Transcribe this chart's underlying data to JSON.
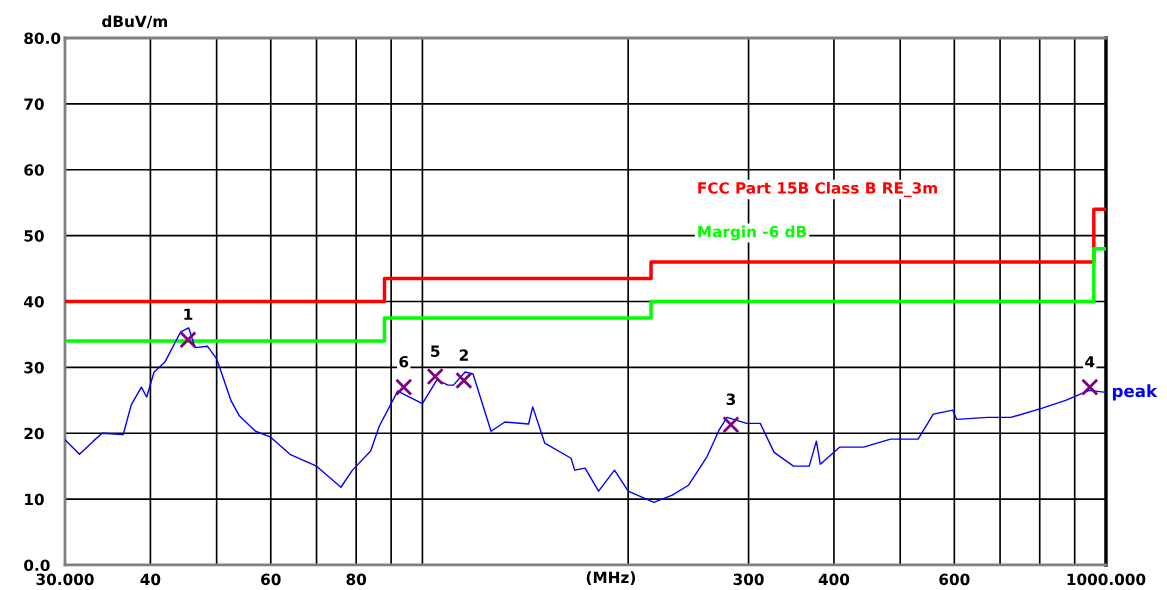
{
  "chart_data": {
    "type": "line",
    "xlabel": "(MHz)",
    "ylabel": "dBuV/m",
    "log": "x",
    "grid": true,
    "legend": false,
    "xlim": [
      30,
      1000
    ],
    "ylim": [
      0,
      80
    ],
    "xticks": [
      {
        "value": 30,
        "label": "30.000"
      },
      40,
      {
        "value": 50,
        "label": null
      },
      60,
      {
        "value": 70,
        "label": null
      },
      80,
      {
        "value": 90,
        "label": null
      },
      {
        "value": 100,
        "label": null
      },
      {
        "value": 200,
        "label": null
      },
      300,
      400,
      {
        "value": 500,
        "label": null
      },
      600,
      {
        "value": 700,
        "label": null
      },
      {
        "value": 800,
        "label": null
      },
      {
        "value": 900,
        "label": null
      },
      {
        "value": 1000,
        "label": "1000.000"
      }
    ],
    "yticks": [
      {
        "value": 0,
        "label": "0.0"
      },
      10,
      20,
      30,
      40,
      50,
      60,
      70,
      {
        "value": 80,
        "label": "80.0"
      }
    ],
    "series": [
      {
        "name": "FCC Part 15B Class B RE_3m",
        "type": "step",
        "color": "#ff0000",
        "x": [
          30,
          88,
          216,
          960,
          1000
        ],
        "values": [
          40,
          43.5,
          46,
          54,
          54
        ]
      },
      {
        "name": "Margin -6 dB",
        "type": "step",
        "color": "#00ff00",
        "x": [
          30,
          88,
          216,
          960,
          1000
        ],
        "values": [
          34,
          37.5,
          40,
          48,
          48
        ]
      },
      {
        "name": "peak",
        "color": "#0000ff",
        "marker": "none",
        "x": [
          30,
          31.5,
          33,
          34,
          36.5,
          37.5,
          38.8,
          39.5,
          40.5,
          42,
          44.3,
          45.5,
          46.5,
          48.5,
          50,
          52.5,
          54,
          57,
          60,
          64,
          70,
          76,
          79,
          84,
          86.5,
          92,
          100,
          105,
          109,
          111,
          115.5,
          118.6,
          126,
          132,
          143,
          145,
          149,
          151,
          165,
          167,
          173,
          181,
          191,
          200,
          218,
          232,
          245,
          261,
          272,
          279,
          298,
          312,
          327,
          349,
          368,
          377,
          382,
          408,
          442,
          484,
          531,
          559,
          597,
          605,
          671,
          726,
          807,
          873,
          945,
          1000
        ],
        "values": [
          19.0,
          16.8,
          18.8,
          20.0,
          19.8,
          24.3,
          27.0,
          25.5,
          29.3,
          30.8,
          35.4,
          36.0,
          33.0,
          33.2,
          31.3,
          24.9,
          22.6,
          20.3,
          19.4,
          16.8,
          15.0,
          11.8,
          14.4,
          17.3,
          21.1,
          26.4,
          24.5,
          28.1,
          27.3,
          27.3,
          29.3,
          29.0,
          20.3,
          21.7,
          21.4,
          24.0,
          20.3,
          18.5,
          16.2,
          14.4,
          14.7,
          11.2,
          14.4,
          11.2,
          9.5,
          10.6,
          12.1,
          16.5,
          20.6,
          22.4,
          21.5,
          21.5,
          17.1,
          15.0,
          15.0,
          18.8,
          15.3,
          17.9,
          17.9,
          19.1,
          19.1,
          22.9,
          23.5,
          22.1,
          22.4,
          22.4,
          23.8,
          25.0,
          26.5,
          26.2
        ]
      },
      {
        "type": "scatter",
        "color": "#800080",
        "marker": "cross",
        "x": [
          45.4,
          115,
          282.7,
          947,
          104.4,
          93.9
        ],
        "values": [
          34.2,
          28.0,
          21.3,
          27.0,
          28.6,
          27.0
        ]
      }
    ],
    "annotations": [
      {
        "text": "1",
        "x": 45.4,
        "y": 34.2
      },
      {
        "text": "2",
        "x": 115,
        "y": 28.0
      },
      {
        "text": "3",
        "x": 282.7,
        "y": 21.3
      },
      {
        "text": "4",
        "x": 947,
        "y": 27.0
      },
      {
        "text": "5",
        "x": 104.4,
        "y": 28.6
      },
      {
        "text": "6",
        "x": 93.9,
        "y": 27.0
      }
    ]
  }
}
